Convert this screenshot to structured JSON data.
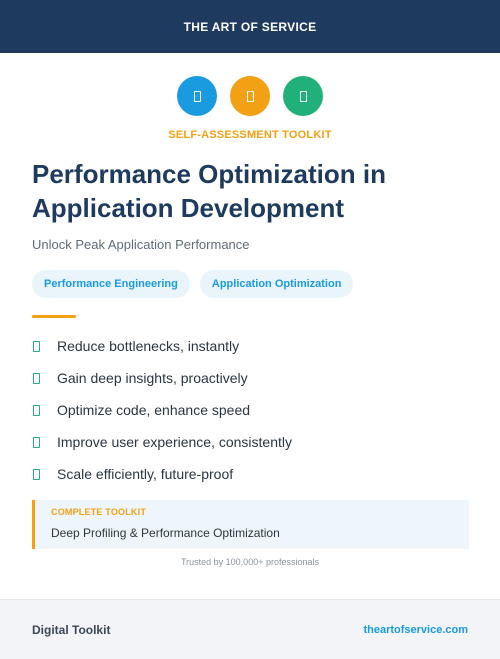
{
  "header": {
    "brand": "THE ART OF SERVICE"
  },
  "icons": [
    {
      "name": "document-icon-blue",
      "color": "#1a9be0"
    },
    {
      "name": "document-icon-orange",
      "color": "#f2a014"
    },
    {
      "name": "document-icon-green",
      "color": "#21b07a"
    }
  ],
  "kicker": "SELF-ASSESSMENT TOOLKIT",
  "title": "Performance Optimization in Application Development",
  "subtitle": "Unlock Peak Application Performance",
  "tags": [
    "Performance Engineering",
    "Application Optimization"
  ],
  "bullets": [
    "Reduce bottlenecks, instantly",
    "Gain deep insights, proactively",
    "Optimize code, enhance speed",
    "Improve user experience, consistently",
    "Scale efficiently, future-proof"
  ],
  "callout": {
    "label": "COMPLETE TOOLKIT",
    "text": "Deep Profiling & Performance Optimization"
  },
  "trusted": "Trusted by 100,000+ professionals",
  "footer": {
    "left": "Digital Toolkit",
    "right": "theartofservice.com"
  },
  "colors": {
    "navy": "#1e3a5f",
    "accent_orange": "#f2a014",
    "accent_blue": "#1a9be0",
    "accent_green": "#21b07a"
  }
}
